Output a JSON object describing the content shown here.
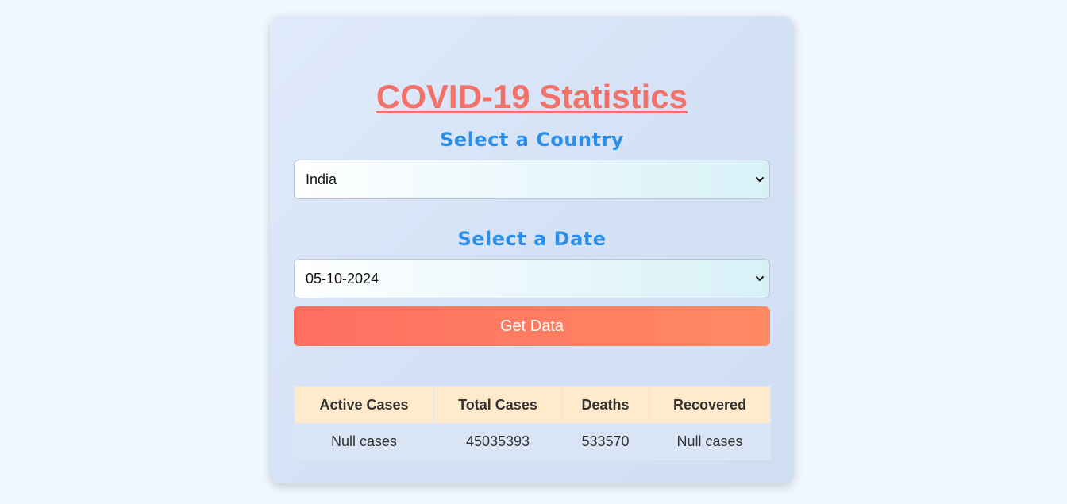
{
  "page": {
    "title": "COVID-19 Statistics"
  },
  "country": {
    "label": "Select a Country",
    "selected": "India"
  },
  "date": {
    "label": "Select a Date",
    "selected": "05-10-2024"
  },
  "actions": {
    "get_data_label": "Get Data"
  },
  "stats": {
    "headers": [
      "Active Cases",
      "Total Cases",
      "Deaths",
      "Recovered"
    ],
    "row": [
      "Null cases",
      "45035393",
      "533570",
      "Null cases"
    ]
  },
  "colors": {
    "title": "#f2726a",
    "section_label": "#2b8ee8",
    "button_start": "#ff6f61",
    "button_end": "#ff8a64",
    "table_header_bg": "#ffebcc"
  },
  "icons": {
    "dropdown": "chevron-down-icon"
  }
}
